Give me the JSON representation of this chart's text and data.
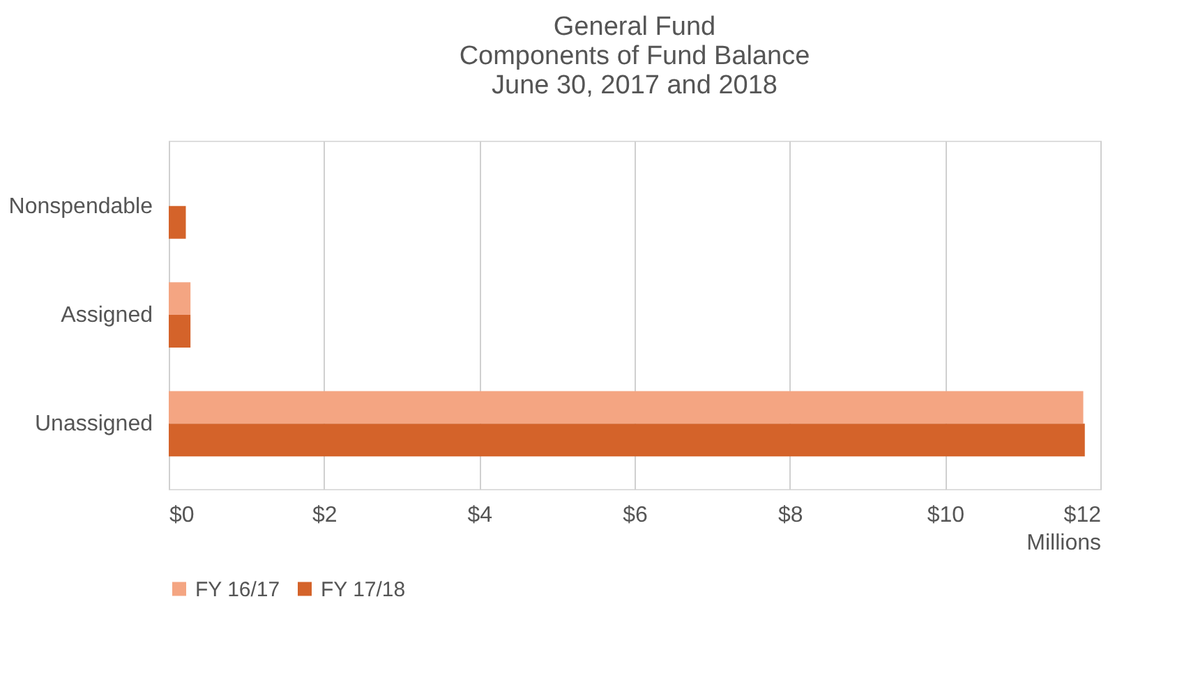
{
  "chart_data": {
    "type": "bar",
    "orientation": "horizontal",
    "title": [
      "General Fund",
      "Components of Fund Balance",
      "June 30, 2017 and 2018"
    ],
    "xlabel": "Millions",
    "categories": [
      "Nonspendable",
      "Assigned",
      "Unassigned"
    ],
    "series": [
      {
        "name": "FY 16/17",
        "color": "#f4a582",
        "values": [
          0,
          0.28,
          11.78
        ]
      },
      {
        "name": "FY 17/18",
        "color": "#d4632a",
        "values": [
          0.22,
          0.28,
          11.8
        ]
      }
    ],
    "xlim": [
      0,
      12
    ],
    "xticks": [
      {
        "value": 0,
        "label": "$0"
      },
      {
        "value": 2,
        "label": "$2"
      },
      {
        "value": 4,
        "label": "$4"
      },
      {
        "value": 6,
        "label": "$6"
      },
      {
        "value": 8,
        "label": "$8"
      },
      {
        "value": 10,
        "label": "$10"
      },
      {
        "value": 12,
        "label": "$12"
      }
    ],
    "grid": "x",
    "legend": "bottom"
  }
}
